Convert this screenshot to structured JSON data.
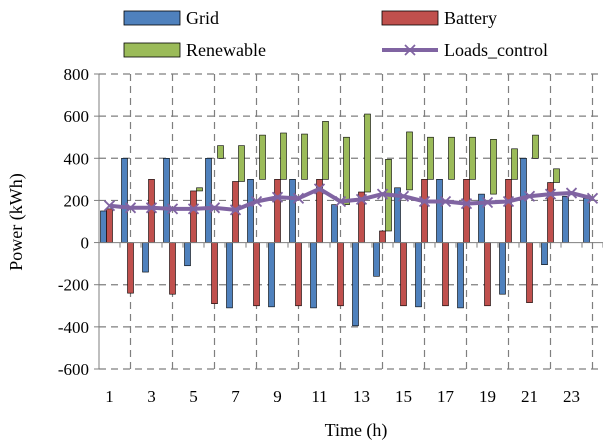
{
  "chart_data": {
    "type": "bar",
    "xlabel": "Time (h)",
    "ylabel": "Power (kWh)",
    "ylim": [
      -600,
      800
    ],
    "yticks": [
      -600,
      -400,
      -200,
      0,
      200,
      400,
      600,
      800
    ],
    "x": [
      1,
      2,
      3,
      4,
      5,
      6,
      7,
      8,
      9,
      10,
      11,
      12,
      13,
      14,
      15,
      16,
      17,
      18,
      19,
      20,
      21,
      22,
      23,
      24
    ],
    "xtick_labels": [
      "1",
      "3",
      "5",
      "7",
      "9",
      "11",
      "13",
      "15",
      "17",
      "19",
      "21",
      "23"
    ],
    "grid": true,
    "legend_position": "top",
    "series": [
      {
        "name": "Grid",
        "kind": "bar",
        "color": "#4f81bd",
        "values": [
          150,
          400,
          -140,
          400,
          -110,
          400,
          -310,
          300,
          -305,
          300,
          -310,
          180,
          -395,
          -160,
          260,
          -305,
          300,
          -310,
          230,
          -245,
          400,
          -105,
          220,
          210
        ]
      },
      {
        "name": "Battery",
        "kind": "floating",
        "color": "#c0504d",
        "values": [
          [
            0,
            160
          ],
          [
            -240,
            0
          ],
          [
            0,
            300
          ],
          [
            -245,
            0
          ],
          [
            0,
            245
          ],
          [
            -290,
            0
          ],
          [
            0,
            290
          ],
          [
            -300,
            0
          ],
          [
            0,
            300
          ],
          [
            -300,
            0
          ],
          [
            0,
            300
          ],
          [
            -300,
            0
          ],
          [
            0,
            240
          ],
          [
            0,
            55
          ],
          [
            -300,
            0
          ],
          [
            0,
            300
          ],
          [
            -300,
            0
          ],
          [
            0,
            300
          ],
          [
            -300,
            0
          ],
          [
            0,
            300
          ],
          [
            -285,
            0
          ],
          [
            0,
            285
          ],
          [
            0,
            0
          ],
          [
            0,
            0
          ]
        ]
      },
      {
        "name": "Renewable",
        "kind": "floating",
        "color": "#9bbb59",
        "values": [
          [
            0,
            0
          ],
          [
            0,
            0
          ],
          [
            0,
            0
          ],
          [
            0,
            0
          ],
          [
            245,
            260
          ],
          [
            400,
            460
          ],
          [
            290,
            460
          ],
          [
            300,
            510
          ],
          [
            300,
            520
          ],
          [
            300,
            515
          ],
          [
            300,
            575
          ],
          [
            180,
            500
          ],
          [
            240,
            610
          ],
          [
            55,
            395
          ],
          [
            250,
            525
          ],
          [
            300,
            500
          ],
          [
            300,
            500
          ],
          [
            300,
            500
          ],
          [
            230,
            490
          ],
          [
            300,
            445
          ],
          [
            400,
            510
          ],
          [
            285,
            350
          ],
          [
            0,
            0
          ],
          [
            0,
            0
          ]
        ]
      },
      {
        "name": "Loads_control",
        "kind": "line",
        "color": "#8064a2",
        "marker": "x",
        "values": [
          175,
          165,
          165,
          160,
          160,
          165,
          155,
          195,
          215,
          210,
          255,
          195,
          205,
          230,
          220,
          195,
          195,
          185,
          190,
          195,
          220,
          230,
          235,
          210
        ]
      }
    ]
  }
}
